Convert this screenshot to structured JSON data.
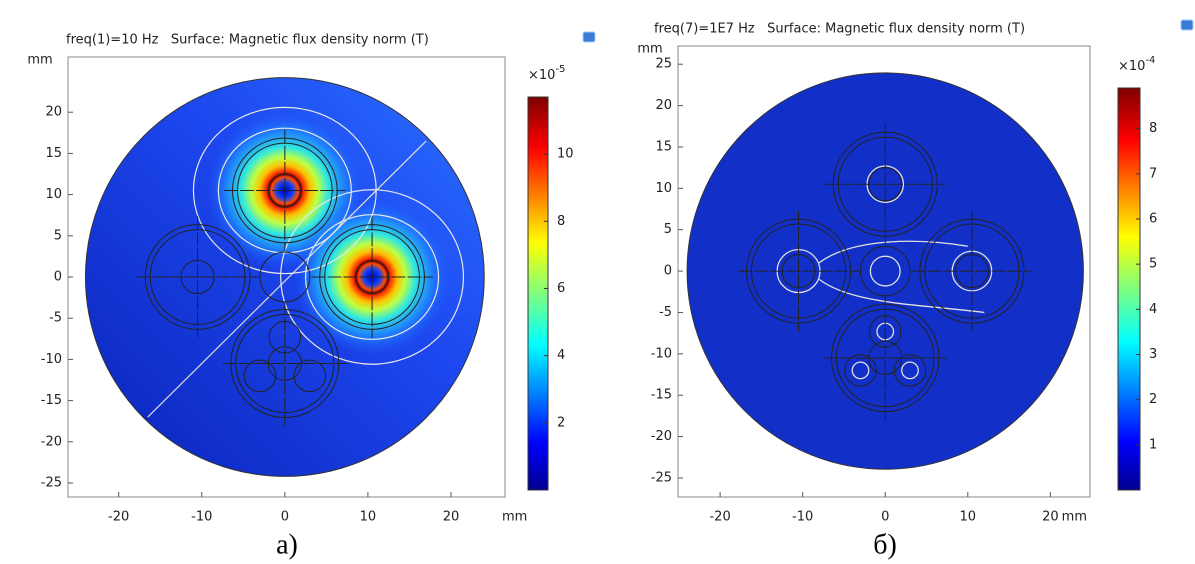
{
  "chart_data": [
    {
      "type": "surface",
      "title": "freq(1)=10 Hz   Surface: Magnetic flux density norm (T)",
      "x_unit": "mm",
      "y_unit": "mm",
      "xlim": [
        -26.1,
        26.5
      ],
      "xticks": [
        -20,
        -10,
        0,
        10,
        20
      ],
      "ylim": [
        -26.7,
        26.7
      ],
      "yticks": [
        20,
        15,
        10,
        5,
        0,
        -5,
        -10,
        -15,
        -20,
        -25
      ],
      "colorbar_label": "×10",
      "colorbar_exponent": "-5",
      "clim": [
        0,
        11.7
      ],
      "cticks": [
        2,
        4,
        6,
        8,
        10
      ],
      "caption": "а)"
    },
    {
      "type": "surface",
      "title": "freq(7)=1E7 Hz   Surface: Magnetic flux density norm (T)",
      "x_unit": "mm",
      "y_unit": "mm",
      "xlim": [
        -25.1,
        24.8
      ],
      "xticks": [
        -20,
        -10,
        0,
        10,
        20
      ],
      "ylim": [
        -27.3,
        27.2
      ],
      "yticks": [
        25,
        20,
        15,
        10,
        5,
        0,
        -5,
        -10,
        -15,
        -20,
        -25
      ],
      "colorbar_label": "×10",
      "colorbar_exponent": "-4",
      "clim": [
        0,
        8.9
      ],
      "cticks": [
        1,
        2,
        3,
        4,
        5,
        6,
        7,
        8
      ],
      "caption": "б)"
    }
  ]
}
